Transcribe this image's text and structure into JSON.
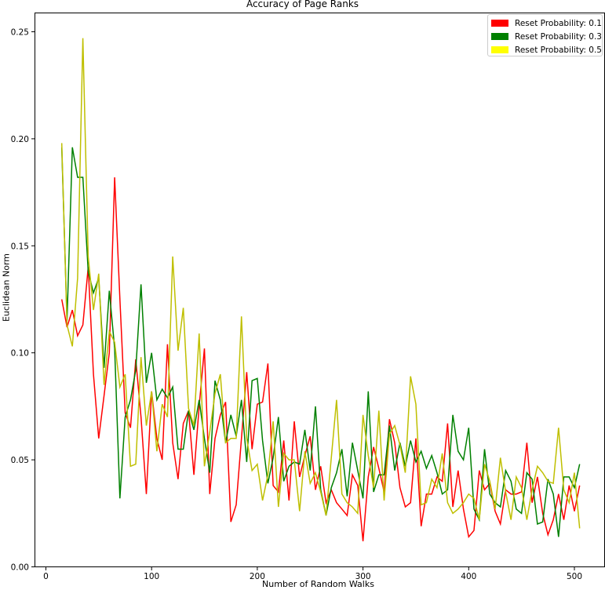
{
  "chart_data": {
    "type": "line",
    "title": "Accuracy of Page Ranks",
    "xlabel": "Number of Random Walks",
    "ylabel": "Euclidean Norm",
    "xlim": [
      -10,
      525
    ],
    "ylim": [
      0,
      0.26
    ],
    "xticks": [
      0,
      100,
      200,
      300,
      400,
      500
    ],
    "yticks": [
      "0.00",
      "0.05",
      "0.10",
      "0.15",
      "0.20",
      "0.25"
    ],
    "grid": false,
    "legend_position": "upper right",
    "x_start": 15,
    "x_step": 5,
    "series": [
      {
        "name": "Reset Probability: 0.1",
        "color": "#ff0000",
        "values": [
          0.125,
          0.112,
          0.12,
          0.108,
          0.113,
          0.14,
          0.09,
          0.06,
          0.08,
          0.1,
          0.182,
          0.125,
          0.072,
          0.065,
          0.097,
          0.07,
          0.034,
          0.082,
          0.06,
          0.05,
          0.104,
          0.058,
          0.041,
          0.067,
          0.073,
          0.043,
          0.075,
          0.102,
          0.034,
          0.06,
          0.071,
          0.077,
          0.021,
          0.029,
          0.06,
          0.091,
          0.055,
          0.076,
          0.077,
          0.095,
          0.038,
          0.035,
          0.059,
          0.031,
          0.068,
          0.042,
          0.052,
          0.061,
          0.036,
          0.047,
          0.03,
          0.036,
          0.03,
          0.027,
          0.024,
          0.043,
          0.038,
          0.012,
          0.042,
          0.056,
          0.046,
          0.035,
          0.069,
          0.058,
          0.037,
          0.028,
          0.03,
          0.06,
          0.019,
          0.034,
          0.034,
          0.042,
          0.04,
          0.067,
          0.028,
          0.045,
          0.027,
          0.014,
          0.017,
          0.045,
          0.036,
          0.039,
          0.026,
          0.02,
          0.036,
          0.034,
          0.034,
          0.035,
          0.058,
          0.03,
          0.042,
          0.025,
          0.015,
          0.022,
          0.034,
          0.022,
          0.038,
          0.026,
          0.038
        ]
      },
      {
        "name": "Reset Probability: 0.3",
        "color": "#008000",
        "values": [
          0.196,
          0.115,
          0.196,
          0.182,
          0.182,
          0.138,
          0.128,
          0.135,
          0.093,
          0.129,
          0.102,
          0.032,
          0.07,
          0.078,
          0.092,
          0.132,
          0.086,
          0.1,
          0.078,
          0.083,
          0.079,
          0.084,
          0.055,
          0.055,
          0.073,
          0.064,
          0.078,
          0.06,
          0.044,
          0.087,
          0.078,
          0.058,
          0.071,
          0.061,
          0.078,
          0.049,
          0.087,
          0.088,
          0.059,
          0.039,
          0.051,
          0.07,
          0.04,
          0.047,
          0.049,
          0.048,
          0.064,
          0.045,
          0.075,
          0.036,
          0.024,
          0.037,
          0.044,
          0.055,
          0.033,
          0.058,
          0.045,
          0.032,
          0.082,
          0.035,
          0.043,
          0.043,
          0.066,
          0.045,
          0.058,
          0.047,
          0.059,
          0.049,
          0.054,
          0.046,
          0.052,
          0.044,
          0.034,
          0.036,
          0.071,
          0.054,
          0.05,
          0.065,
          0.027,
          0.022,
          0.055,
          0.034,
          0.03,
          0.028,
          0.045,
          0.04,
          0.027,
          0.025,
          0.044,
          0.041,
          0.02,
          0.021,
          0.041,
          0.034,
          0.014,
          0.042,
          0.042,
          0.037,
          0.048
        ]
      },
      {
        "name": "Reset Probability: 0.5",
        "color": "#bfbf00",
        "values": [
          0.198,
          0.113,
          0.103,
          0.135,
          0.247,
          0.145,
          0.12,
          0.137,
          0.085,
          0.11,
          0.105,
          0.084,
          0.09,
          0.047,
          0.048,
          0.098,
          0.066,
          0.082,
          0.054,
          0.076,
          0.07,
          0.145,
          0.101,
          0.121,
          0.074,
          0.066,
          0.109,
          0.047,
          0.063,
          0.081,
          0.09,
          0.058,
          0.06,
          0.06,
          0.117,
          0.06,
          0.045,
          0.048,
          0.031,
          0.043,
          0.068,
          0.028,
          0.053,
          0.05,
          0.05,
          0.026,
          0.054,
          0.039,
          0.044,
          0.035,
          0.024,
          0.051,
          0.078,
          0.034,
          0.03,
          0.028,
          0.025,
          0.071,
          0.052,
          0.037,
          0.073,
          0.031,
          0.062,
          0.066,
          0.057,
          0.044,
          0.089,
          0.076,
          0.029,
          0.03,
          0.041,
          0.037,
          0.053,
          0.03,
          0.025,
          0.027,
          0.03,
          0.034,
          0.032,
          0.022,
          0.048,
          0.04,
          0.027,
          0.051,
          0.035,
          0.022,
          0.042,
          0.037,
          0.022,
          0.036,
          0.047,
          0.044,
          0.04,
          0.039,
          0.065,
          0.036,
          0.03,
          0.044,
          0.018
        ]
      }
    ]
  },
  "legend": {
    "items": [
      {
        "label": "Reset Probability: 0.1",
        "color": "#ff0000"
      },
      {
        "label": "Reset Probability: 0.3",
        "color": "#008000"
      },
      {
        "label": "Reset Probability: 0.5",
        "color": "#ffff00"
      }
    ]
  }
}
